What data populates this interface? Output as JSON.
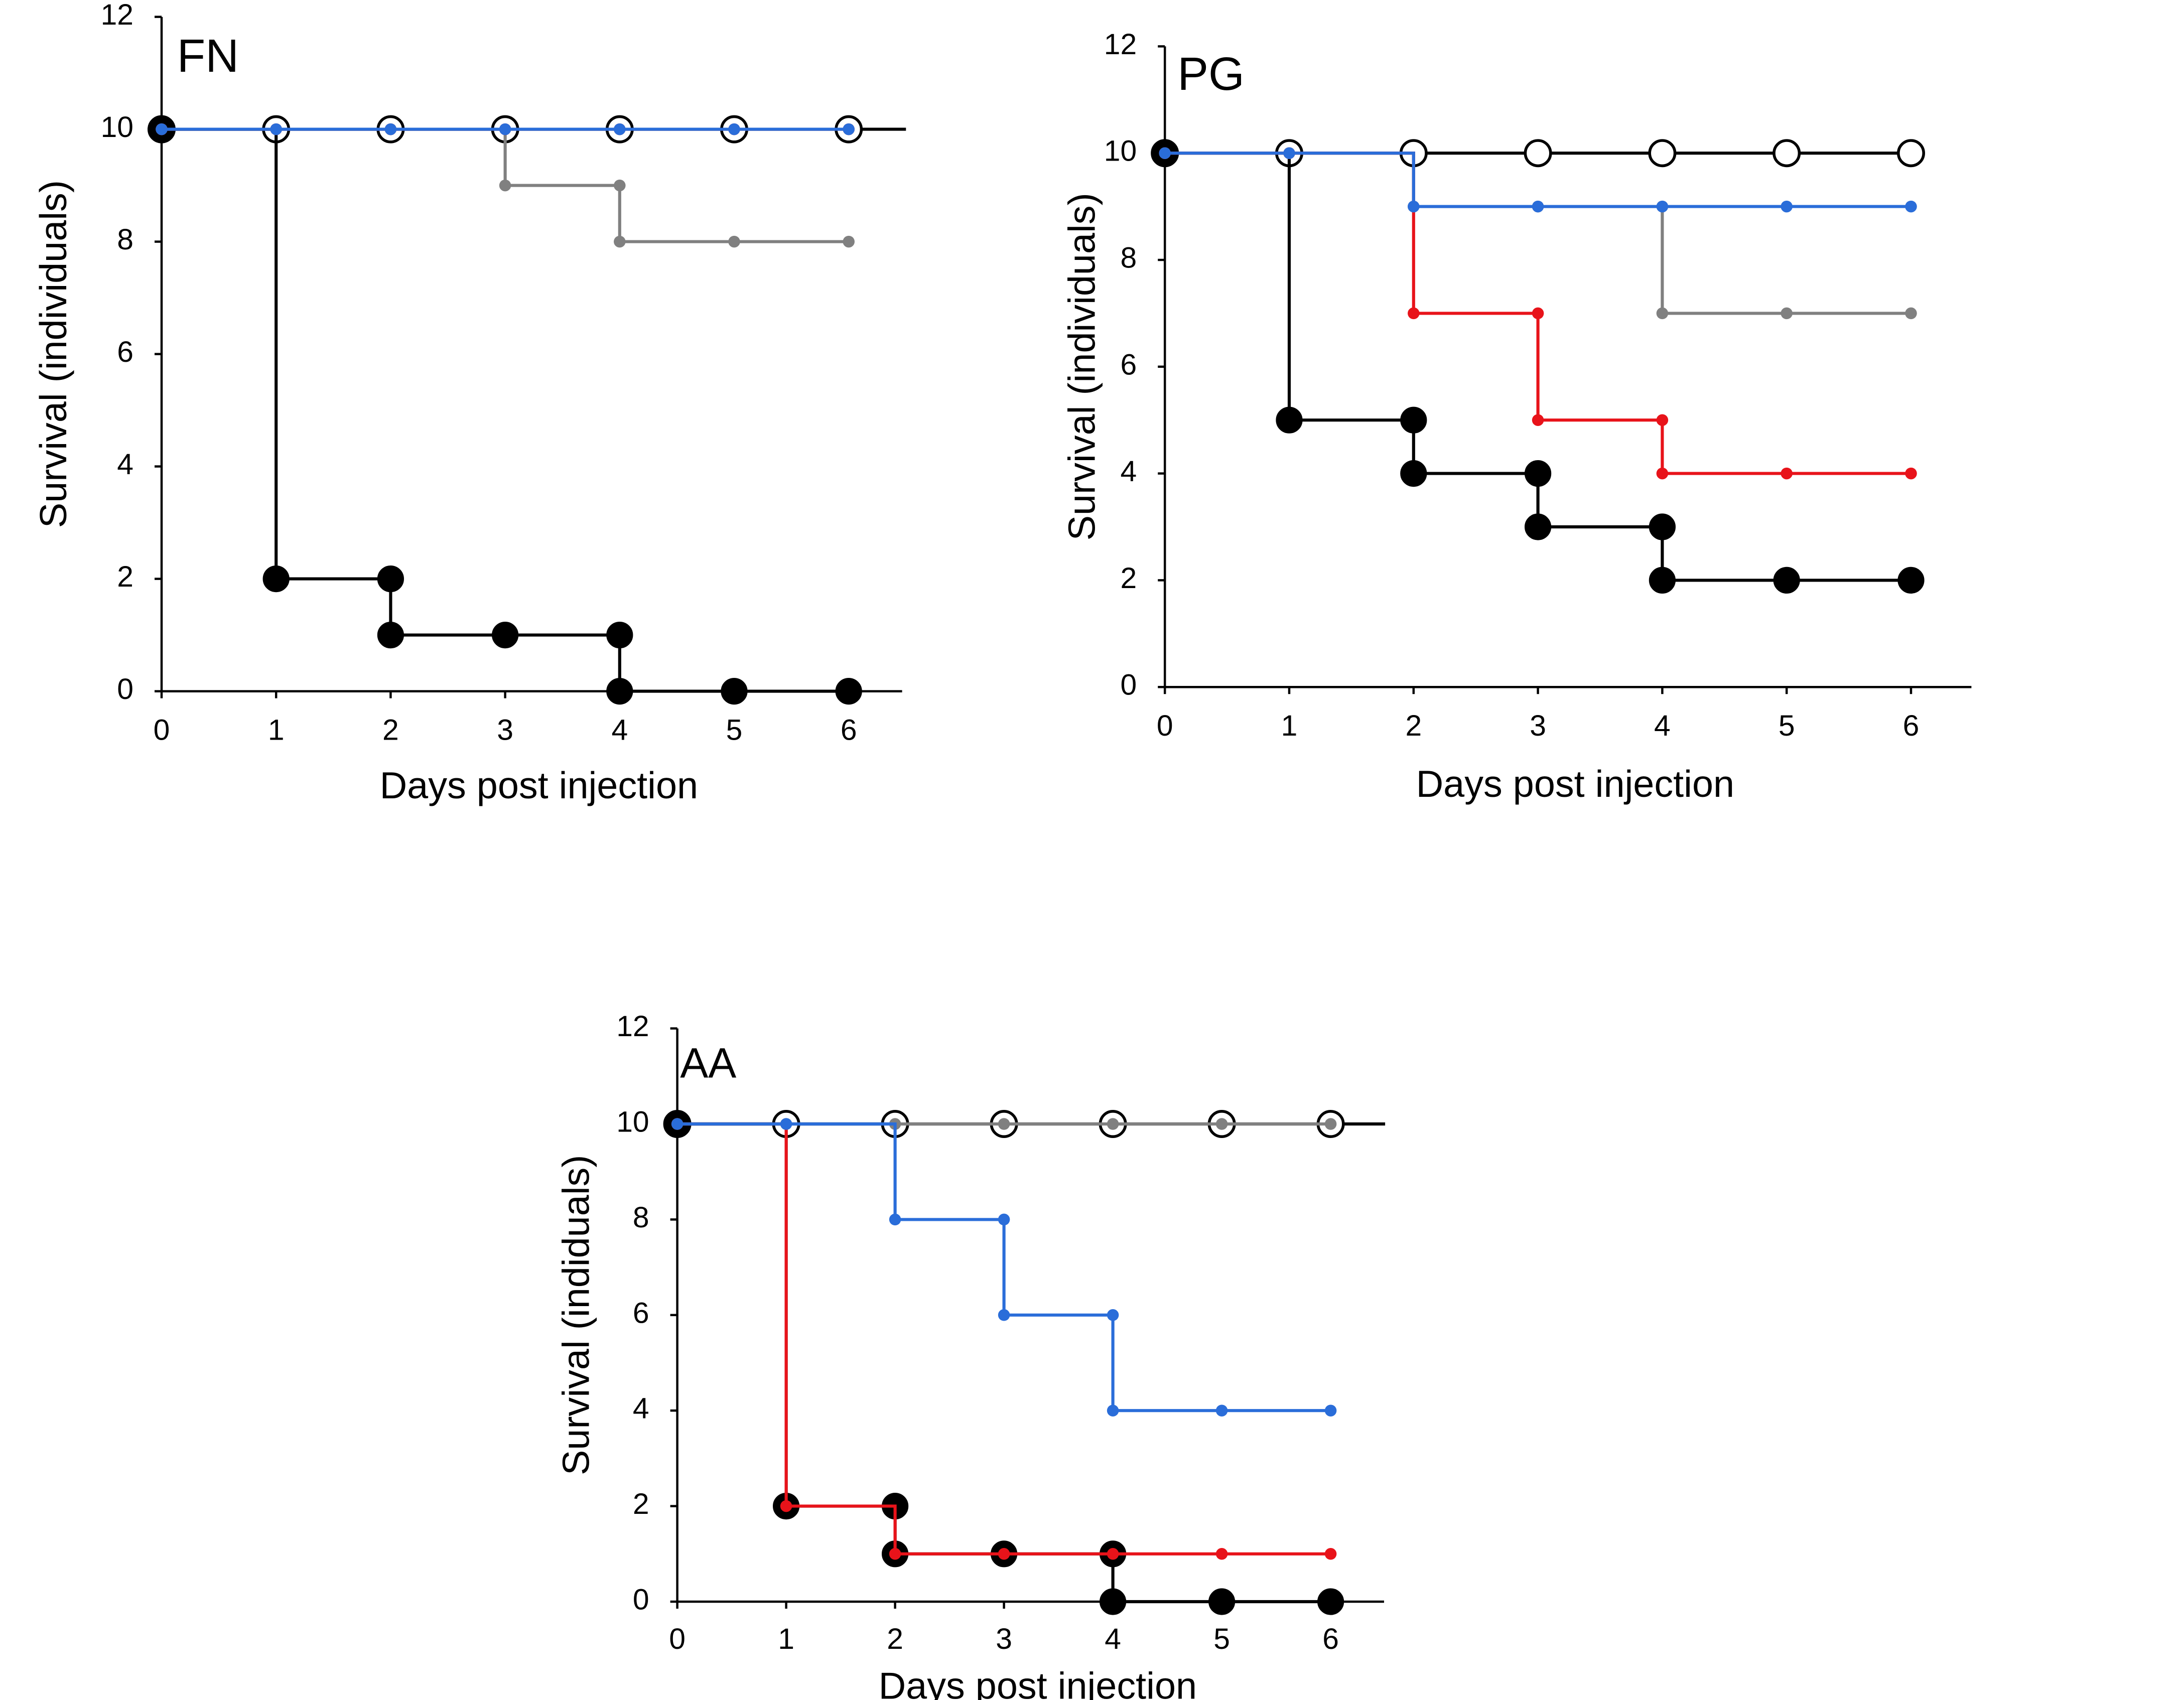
{
  "chart_data": [
    {
      "type": "line",
      "title": "FN",
      "xlabel": "Days post injection",
      "ylabel": "Survival (individuals)",
      "xlim": [
        0,
        6.5
      ],
      "ylim": [
        0,
        12
      ],
      "xticks": [
        "0",
        "1",
        "2",
        "3",
        "4",
        "5",
        "6"
      ],
      "yticks": [
        "0",
        "2",
        "4",
        "6",
        "8",
        "10",
        "12"
      ],
      "grid": false,
      "legend": "none",
      "series": [
        {
          "name": "black open",
          "color": "#000000",
          "marker": "open-large",
          "x": [
            0,
            1,
            2,
            3,
            4,
            5,
            6,
            6.5
          ],
          "values": [
            10,
            10,
            10,
            10,
            10,
            10,
            10,
            10
          ]
        },
        {
          "name": "black filled",
          "color": "#000000",
          "marker": "filled-large",
          "x": [
            0,
            1,
            2,
            2,
            3,
            4,
            4,
            5,
            6
          ],
          "values": [
            10,
            2,
            2,
            1,
            1,
            1,
            0,
            0,
            0
          ]
        },
        {
          "name": "grey",
          "color": "#808080",
          "marker": "small",
          "x": [
            0,
            1,
            2,
            3,
            4,
            4,
            5,
            6
          ],
          "values": [
            10,
            10,
            10,
            9,
            9,
            8,
            8,
            8
          ]
        },
        {
          "name": "red",
          "color": "#e8131a",
          "marker": "small",
          "x": [
            0,
            1,
            2,
            3,
            4,
            5,
            6
          ],
          "values": [
            10,
            10,
            10,
            10,
            10,
            10,
            10
          ]
        },
        {
          "name": "blue",
          "color": "#2a6dd9",
          "marker": "small",
          "x": [
            0,
            1,
            2,
            3,
            4,
            5,
            6
          ],
          "values": [
            10,
            10,
            10,
            10,
            10,
            10,
            10
          ]
        }
      ]
    },
    {
      "type": "line",
      "title": "PG",
      "xlabel": "Days post injection",
      "ylabel": "Survival (individuals)",
      "xlim": [
        0,
        6.5
      ],
      "ylim": [
        0,
        12
      ],
      "xticks": [
        "0",
        "1",
        "2",
        "3",
        "4",
        "5",
        "6"
      ],
      "yticks": [
        "0",
        "2",
        "4",
        "6",
        "8",
        "10",
        "12"
      ],
      "grid": false,
      "legend": "none",
      "series": [
        {
          "name": "black open",
          "color": "#000000",
          "marker": "open-large",
          "x": [
            0,
            1,
            2,
            3,
            4,
            5,
            6
          ],
          "values": [
            10,
            10,
            10,
            10,
            10,
            10,
            10
          ]
        },
        {
          "name": "black filled",
          "color": "#000000",
          "marker": "filled-large",
          "x": [
            0,
            1,
            2,
            2,
            3,
            3,
            4,
            4,
            5,
            6
          ],
          "values": [
            10,
            5,
            5,
            4,
            4,
            3,
            3,
            2,
            2,
            2
          ]
        },
        {
          "name": "grey",
          "color": "#808080",
          "marker": "small",
          "x": [
            0,
            1,
            2,
            3,
            4,
            4,
            5,
            6
          ],
          "values": [
            10,
            10,
            9,
            9,
            9,
            7,
            7,
            7
          ]
        },
        {
          "name": "red",
          "color": "#e8131a",
          "marker": "small",
          "x": [
            0,
            1,
            2,
            3,
            3,
            4,
            4,
            5,
            6
          ],
          "values": [
            10,
            10,
            7,
            7,
            5,
            5,
            4,
            4,
            4
          ]
        },
        {
          "name": "blue",
          "color": "#2a6dd9",
          "marker": "small",
          "x": [
            0,
            1,
            2,
            3,
            4,
            5,
            6
          ],
          "values": [
            10,
            10,
            9,
            9,
            9,
            9,
            9
          ]
        }
      ]
    },
    {
      "type": "line",
      "title": "AA",
      "xlabel": "Days post injection",
      "ylabel": "Survival (indiduals)",
      "xlim": [
        0,
        6.5
      ],
      "ylim": [
        0,
        12
      ],
      "xticks": [
        "0",
        "1",
        "2",
        "3",
        "4",
        "5",
        "6"
      ],
      "yticks": [
        "0",
        "2",
        "4",
        "6",
        "8",
        "10",
        "12"
      ],
      "grid": false,
      "legend": "none",
      "series": [
        {
          "name": "black open",
          "color": "#000000",
          "marker": "open-large",
          "x": [
            0,
            1,
            2,
            3,
            4,
            5,
            6,
            6.5
          ],
          "values": [
            10,
            10,
            10,
            10,
            10,
            10,
            10,
            10
          ]
        },
        {
          "name": "black filled",
          "color": "#000000",
          "marker": "filled-large",
          "x": [
            0,
            1,
            2,
            2,
            3,
            4,
            4,
            5,
            6
          ],
          "values": [
            10,
            2,
            2,
            1,
            1,
            1,
            0,
            0,
            0
          ]
        },
        {
          "name": "grey",
          "color": "#808080",
          "marker": "small",
          "x": [
            0,
            1,
            2,
            3,
            4,
            5,
            6
          ],
          "values": [
            10,
            10,
            10,
            10,
            10,
            10,
            10
          ]
        },
        {
          "name": "red",
          "color": "#e8131a",
          "marker": "small",
          "x": [
            0,
            1,
            2,
            3,
            4,
            5,
            6
          ],
          "values": [
            10,
            2,
            1,
            1,
            1,
            1,
            1
          ]
        },
        {
          "name": "blue",
          "color": "#2a6dd9",
          "marker": "small",
          "x": [
            0,
            1,
            2,
            3,
            3,
            4,
            4,
            5,
            6
          ],
          "values": [
            10,
            10,
            8,
            8,
            6,
            6,
            4,
            4,
            4
          ]
        }
      ]
    }
  ]
}
